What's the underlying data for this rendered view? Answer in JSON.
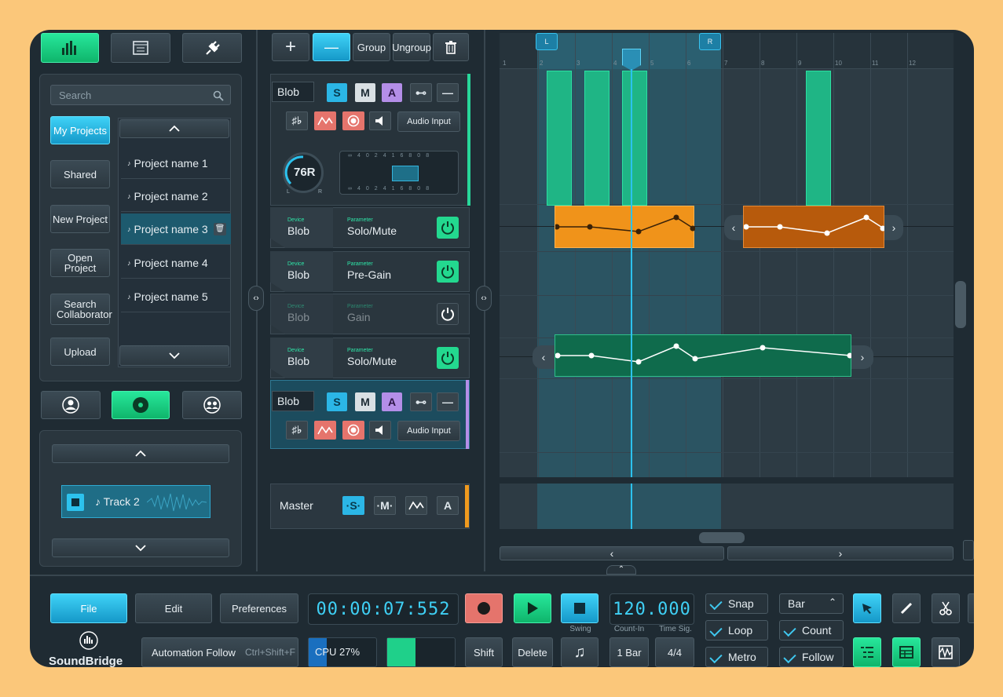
{
  "top_left_tabs": {
    "icons": [
      "equalizer-icon",
      "browser-icon",
      "plugin-icon"
    ]
  },
  "browser": {
    "search_placeholder": "Search",
    "side_buttons": [
      "My Projects",
      "Shared",
      "New Project",
      "Open Project",
      "Search Collaborator",
      "Upload"
    ],
    "projects": [
      "Project name 1",
      "Project name 2",
      "Project name 3",
      "Project name 4",
      "Project name 5"
    ]
  },
  "mini_player": {
    "track": "♪ Track 2"
  },
  "track_toolbar": {
    "add": "+",
    "remove": "—",
    "group": "Group",
    "ungroup": "Ungroup"
  },
  "tracks": [
    {
      "name": "Blob",
      "s": "S",
      "m": "M",
      "a": "A",
      "input": "Audio Input",
      "knob": "76R",
      "knob_l": "L",
      "knob_r": "R",
      "meter_ticks": [
        "∞",
        "40",
        "24",
        "16",
        "8",
        "0",
        "8"
      ]
    },
    {
      "name": "Blob",
      "s": "S",
      "m": "M",
      "a": "A",
      "input": "Audio Input"
    }
  ],
  "automation": [
    {
      "device_label": "Device",
      "device": "Blob",
      "param_label": "Parameter",
      "param": "Solo/Mute",
      "enabled": true
    },
    {
      "device_label": "Device",
      "device": "Blob",
      "param_label": "Parameter",
      "param": "Pre-Gain",
      "enabled": true
    },
    {
      "device_label": "Device",
      "device": "Blob",
      "param_label": "Parameter",
      "param": "Gain",
      "enabled": false
    },
    {
      "device_label": "Device",
      "device": "Blob",
      "param_label": "Parameter",
      "param": "Solo/Mute",
      "enabled": true
    }
  ],
  "master": {
    "name": "Master",
    "s": "·S·",
    "m": "·M·",
    "a": "A"
  },
  "ruler": {
    "marks": [
      "1",
      "2",
      "3",
      "4",
      "5",
      "6",
      "7",
      "8",
      "9",
      "10",
      "11",
      "12"
    ],
    "loop_left": "L",
    "loop_right": "R"
  },
  "transport": {
    "file": "File",
    "edit": "Edit",
    "preferences": "Preferences",
    "time": "00:00:07:552",
    "tempo": "120.000",
    "swing": "Swing",
    "count_in": "Count-In",
    "time_sig_label": "Time Sig.",
    "count_in_value": "1 Bar",
    "time_sig": "4/4",
    "automation_follow": "Automation Follow",
    "shortcut": "Ctrl+Shift+F",
    "cpu": "CPU 27%",
    "shift": "Shift",
    "delete": "Delete",
    "snap": "Snap",
    "loop": "Loop",
    "metro": "Metro",
    "grid": "Bar",
    "count": "Count",
    "follow": "Follow",
    "logo": "SoundBridge"
  }
}
